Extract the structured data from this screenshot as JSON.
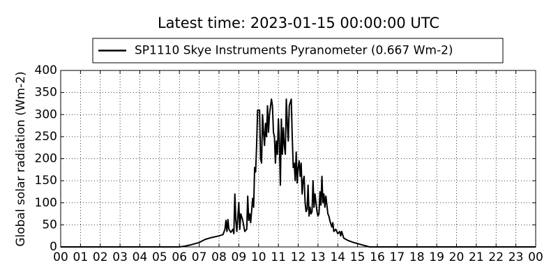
{
  "chart_data": {
    "type": "line",
    "title": "Latest time: 2023-01-15 00:00:00 UTC",
    "y_label": "Global solar radiation (Wm-2)",
    "x": [
      0,
      6,
      6.3,
      6.6,
      7,
      7.3,
      7.6,
      8,
      8.2,
      8.3,
      8.35,
      8.4,
      8.45,
      8.5,
      8.6,
      8.7,
      8.75,
      8.8,
      8.85,
      8.9,
      9.0,
      9.05,
      9.1,
      9.2,
      9.3,
      9.4,
      9.45,
      9.5,
      9.55,
      9.6,
      9.7,
      9.75,
      9.8,
      9.85,
      9.9,
      9.95,
      10.05,
      10.1,
      10.15,
      10.2,
      10.25,
      10.3,
      10.35,
      10.4,
      10.45,
      10.5,
      10.55,
      10.65,
      10.7,
      10.75,
      10.8,
      10.85,
      10.9,
      10.95,
      11.0,
      11.05,
      11.1,
      11.15,
      11.2,
      11.25,
      11.3,
      11.35,
      11.4,
      11.45,
      11.5,
      11.55,
      11.65,
      11.7,
      11.75,
      11.8,
      11.85,
      11.9,
      11.95,
      12.0,
      12.05,
      12.1,
      12.15,
      12.2,
      12.25,
      12.3,
      12.35,
      12.4,
      12.45,
      12.5,
      12.55,
      12.6,
      12.65,
      12.7,
      12.75,
      12.8,
      12.85,
      12.9,
      12.95,
      13.0,
      13.05,
      13.1,
      13.15,
      13.2,
      13.25,
      13.3,
      13.35,
      13.4,
      13.45,
      13.5,
      13.55,
      13.6,
      13.7,
      13.75,
      13.8,
      13.9,
      14.0,
      14.1,
      14.15,
      14.2,
      14.3,
      14.5,
      14.8,
      15.2,
      15.6,
      24
    ],
    "series": [
      {
        "name": "SP1110 Skye Instruments Pyranometer (0.667 Wm-2)",
        "color": "#000000",
        "values": [
          0,
          0,
          2,
          5,
          10,
          17,
          21,
          25,
          28,
          40,
          60,
          35,
          62,
          40,
          33,
          40,
          30,
          120,
          60,
          35,
          100,
          40,
          75,
          60,
          35,
          40,
          115,
          60,
          75,
          55,
          110,
          90,
          180,
          170,
          230,
          310,
          310,
          200,
          190,
          300,
          260,
          230,
          280,
          250,
          320,
          260,
          300,
          335,
          320,
          260,
          250,
          190,
          240,
          210,
          290,
          240,
          140,
          290,
          210,
          270,
          230,
          210,
          335,
          280,
          240,
          320,
          335,
          250,
          180,
          190,
          150,
          215,
          145,
          180,
          195,
          160,
          190,
          120,
          150,
          160,
          100,
          80,
          85,
          140,
          70,
          90,
          75,
          80,
          150,
          90,
          120,
          100,
          80,
          70,
          75,
          125,
          95,
          160,
          100,
          120,
          90,
          115,
          95,
          75,
          70,
          60,
          45,
          55,
          35,
          40,
          30,
          35,
          25,
          35,
          20,
          15,
          10,
          5,
          0,
          0
        ]
      }
    ],
    "xlim": [
      0,
      24
    ],
    "ylim": [
      0,
      400
    ],
    "xticks": [
      {
        "value": 0,
        "label": "00"
      },
      {
        "value": 1,
        "label": "01"
      },
      {
        "value": 2,
        "label": "02"
      },
      {
        "value": 3,
        "label": "03"
      },
      {
        "value": 4,
        "label": "04"
      },
      {
        "value": 5,
        "label": "05"
      },
      {
        "value": 6,
        "label": "06"
      },
      {
        "value": 7,
        "label": "07"
      },
      {
        "value": 8,
        "label": "08"
      },
      {
        "value": 9,
        "label": "09"
      },
      {
        "value": 10,
        "label": "10"
      },
      {
        "value": 11,
        "label": "11"
      },
      {
        "value": 12,
        "label": "12"
      },
      {
        "value": 13,
        "label": "13"
      },
      {
        "value": 14,
        "label": "14"
      },
      {
        "value": 15,
        "label": "15"
      },
      {
        "value": 16,
        "label": "16"
      },
      {
        "value": 17,
        "label": "17"
      },
      {
        "value": 18,
        "label": "18"
      },
      {
        "value": 19,
        "label": "19"
      },
      {
        "value": 20,
        "label": "20"
      },
      {
        "value": 21,
        "label": "21"
      },
      {
        "value": 22,
        "label": "22"
      },
      {
        "value": 23,
        "label": "23"
      },
      {
        "value": 24,
        "label": "00"
      }
    ],
    "yticks": [
      0,
      50,
      100,
      150,
      200,
      250,
      300,
      350,
      400
    ],
    "grid": true,
    "legend": "top"
  }
}
